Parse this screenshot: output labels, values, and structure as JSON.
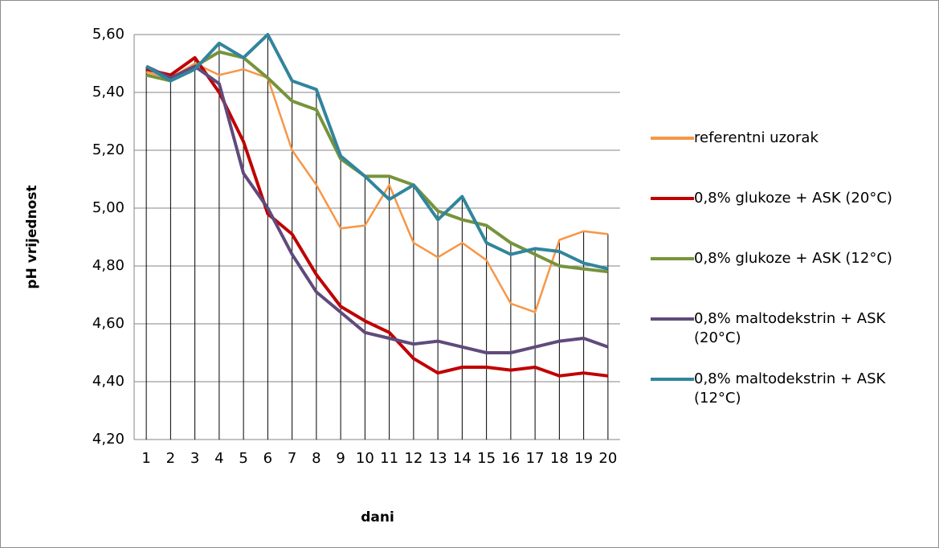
{
  "chart_data": {
    "type": "line",
    "x_label": "dani",
    "y_label": "pH vrijednost",
    "categories": [
      "1",
      "2",
      "3",
      "4",
      "5",
      "6",
      "7",
      "8",
      "9",
      "10",
      "11",
      "12",
      "13",
      "14",
      "15",
      "16",
      "17",
      "18",
      "19",
      "20"
    ],
    "ylim": [
      4.2,
      5.6
    ],
    "yticks": [
      {
        "value": 4.2,
        "label": "4,20"
      },
      {
        "value": 4.4,
        "label": "4,40"
      },
      {
        "value": 4.6,
        "label": "4,60"
      },
      {
        "value": 4.8,
        "label": "4,80"
      },
      {
        "value": 5.0,
        "label": "5,00"
      },
      {
        "value": 5.2,
        "label": "5,20"
      },
      {
        "value": 5.4,
        "label": "5,40"
      },
      {
        "value": 5.6,
        "label": "5,60"
      }
    ],
    "grid": true,
    "drop_lines": true,
    "legend": "right",
    "series": [
      {
        "name": "referentni uzorak",
        "color": "#f79646",
        "values": [
          5.47,
          5.45,
          5.5,
          5.46,
          5.48,
          5.45,
          5.2,
          5.08,
          4.93,
          4.94,
          5.08,
          4.88,
          4.83,
          4.88,
          4.82,
          4.67,
          4.64,
          4.89,
          4.92,
          4.91
        ]
      },
      {
        "name": "0,8% glukoze + ASK (20°C)",
        "color": "#c00000",
        "values": [
          5.48,
          5.46,
          5.52,
          5.4,
          5.23,
          4.98,
          4.91,
          4.77,
          4.66,
          4.61,
          4.57,
          4.48,
          4.43,
          4.45,
          4.45,
          4.44,
          4.45,
          4.42,
          4.43,
          4.42
        ]
      },
      {
        "name": "0,8% glukoze + ASK (12°C)",
        "color": "#77933c",
        "values": [
          5.46,
          5.44,
          5.49,
          5.54,
          5.52,
          5.45,
          5.37,
          5.34,
          5.17,
          5.11,
          5.11,
          5.08,
          4.99,
          4.96,
          4.94,
          4.88,
          4.84,
          4.8,
          4.79,
          4.78
        ]
      },
      {
        "name": "0,8% maltodekstrin + ASK (20°C)",
        "color": "#604a7b",
        "values": [
          5.49,
          5.45,
          5.49,
          5.43,
          5.12,
          5.0,
          4.84,
          4.71,
          4.64,
          4.57,
          4.55,
          4.53,
          4.54,
          4.52,
          4.5,
          4.5,
          4.52,
          4.54,
          4.55,
          4.52
        ]
      },
      {
        "name": "0,8% maltodekstrin + ASK (12°C)",
        "color": "#31859c",
        "values": [
          5.49,
          5.44,
          5.48,
          5.57,
          5.52,
          5.6,
          5.44,
          5.41,
          5.18,
          5.11,
          5.03,
          5.08,
          4.96,
          5.04,
          4.88,
          4.84,
          4.86,
          4.85,
          4.81,
          4.79
        ]
      }
    ]
  }
}
